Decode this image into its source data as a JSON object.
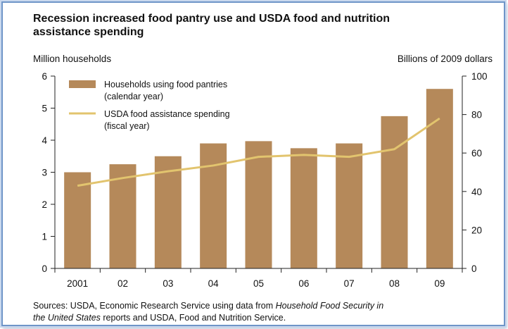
{
  "chart_data": {
    "type": "bar",
    "title_line1": "Recession increased food pantry use and USDA food and nutrition",
    "title_line2": "assistance spending",
    "left_axis_label": "Million households",
    "right_axis_label": "Billions of 2009 dollars",
    "categories": [
      "2001",
      "02",
      "03",
      "04",
      "05",
      "06",
      "07",
      "08",
      "09"
    ],
    "left_ylim": [
      0,
      6
    ],
    "left_yticks": [
      "0",
      "1",
      "2",
      "3",
      "4",
      "5",
      "6"
    ],
    "right_ylim": [
      0,
      100
    ],
    "right_yticks": [
      "0",
      "20",
      "40",
      "60",
      "80",
      "100"
    ],
    "grid": false,
    "legend_placement": "top-left",
    "series": [
      {
        "name": "Households using food pantries",
        "name_line2": "(calendar year)",
        "kind": "bar",
        "axis": "left",
        "color": "#b5895a",
        "values": [
          3.0,
          3.25,
          3.5,
          3.9,
          3.97,
          3.75,
          3.9,
          4.75,
          5.6
        ]
      },
      {
        "name": "USDA food assistance spending",
        "name_line2": "(fiscal year)",
        "kind": "line",
        "axis": "right",
        "color": "#e2c46e",
        "values": [
          43,
          47,
          50.5,
          53.5,
          58,
          59,
          58,
          62,
          78
        ]
      }
    ]
  },
  "sources": {
    "line1_prefix": "Sources:  USDA, Economic Research Service using data from ",
    "line1_italic": "Household Food Security in",
    "line2_italic": "the United States",
    "line2_suffix": " reports and USDA, Food and Nutrition Service."
  }
}
